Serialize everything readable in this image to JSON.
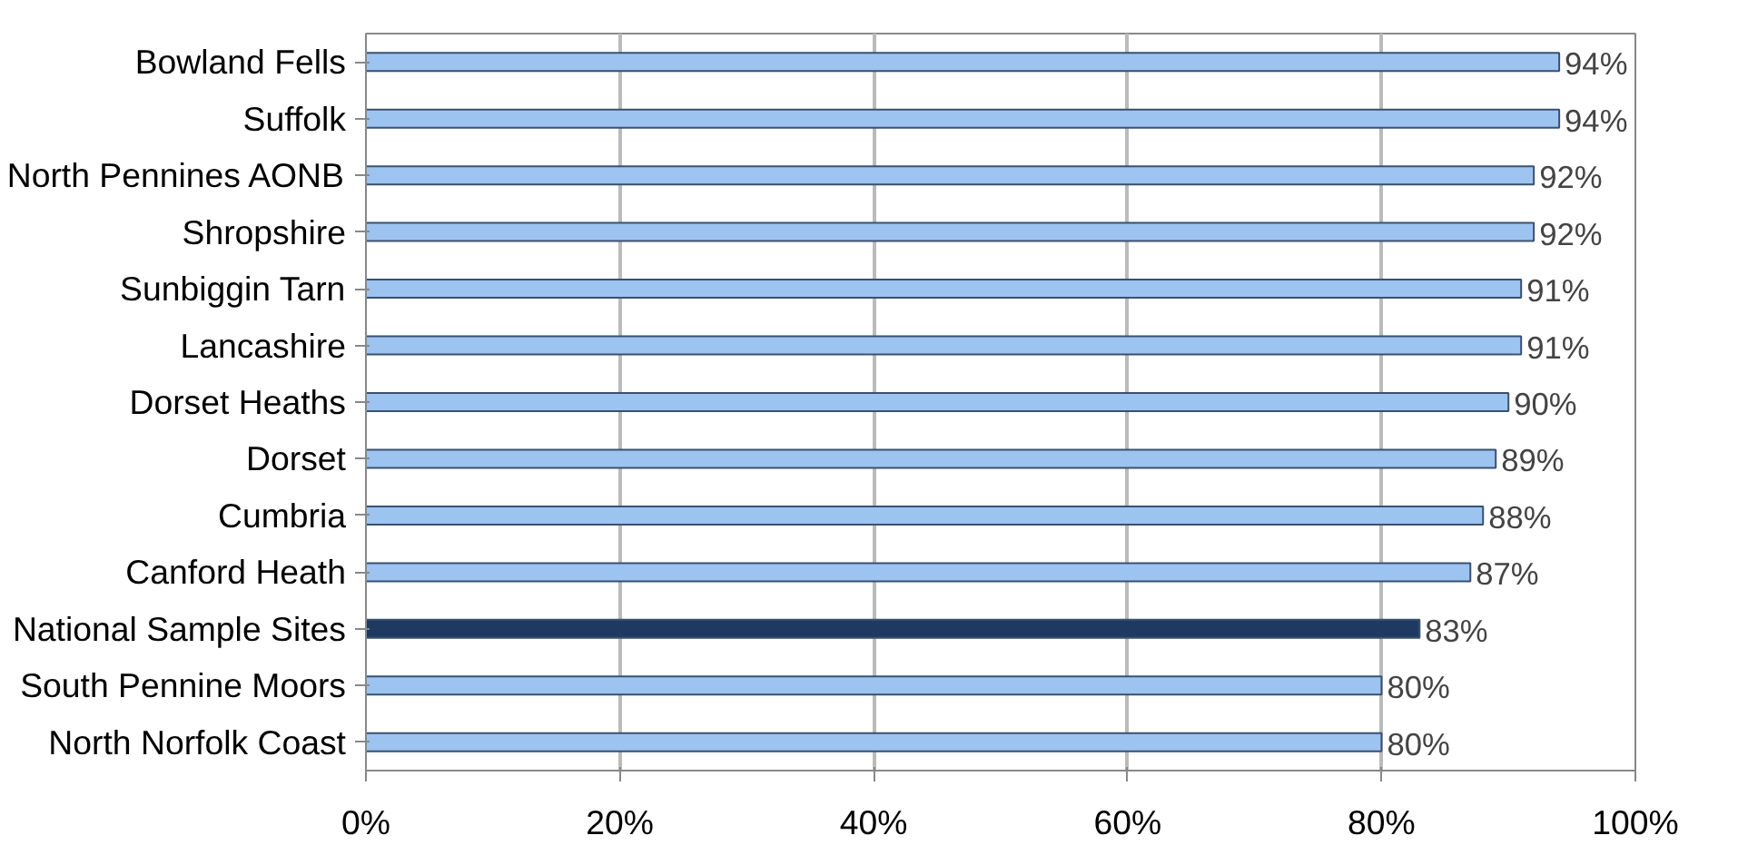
{
  "chart_data": {
    "type": "bar",
    "orientation": "horizontal",
    "categories": [
      "Bowland Fells",
      "Suffolk",
      "North Pennines AONB",
      "Shropshire",
      "Sunbiggin Tarn",
      "Lancashire",
      "Dorset Heaths",
      "Dorset",
      "Cumbria",
      "Canford Heath",
      "National Sample Sites",
      "South Pennine Moors",
      "North Norfolk Coast"
    ],
    "values": [
      94,
      94,
      92,
      92,
      91,
      91,
      90,
      89,
      88,
      87,
      83,
      80,
      80
    ],
    "colors": [
      "#9dc3f0",
      "#9dc3f0",
      "#9dc3f0",
      "#9dc3f0",
      "#9dc3f0",
      "#9dc3f0",
      "#9dc3f0",
      "#9dc3f0",
      "#9dc3f0",
      "#9dc3f0",
      "#1f3a60",
      "#9dc3f0",
      "#9dc3f0"
    ],
    "value_labels": [
      "94%",
      "94%",
      "92%",
      "92%",
      "91%",
      "91%",
      "90%",
      "89%",
      "88%",
      "87%",
      "83%",
      "80%",
      "80%"
    ],
    "xlim": [
      0,
      100
    ],
    "xticks": [
      {
        "value": 0,
        "label": "0%"
      },
      {
        "value": 20,
        "label": "20%"
      },
      {
        "value": 40,
        "label": "40%"
      },
      {
        "value": 60,
        "label": "60%"
      },
      {
        "value": 80,
        "label": "80%"
      },
      {
        "value": 100,
        "label": "100%"
      }
    ],
    "grid": "x"
  }
}
